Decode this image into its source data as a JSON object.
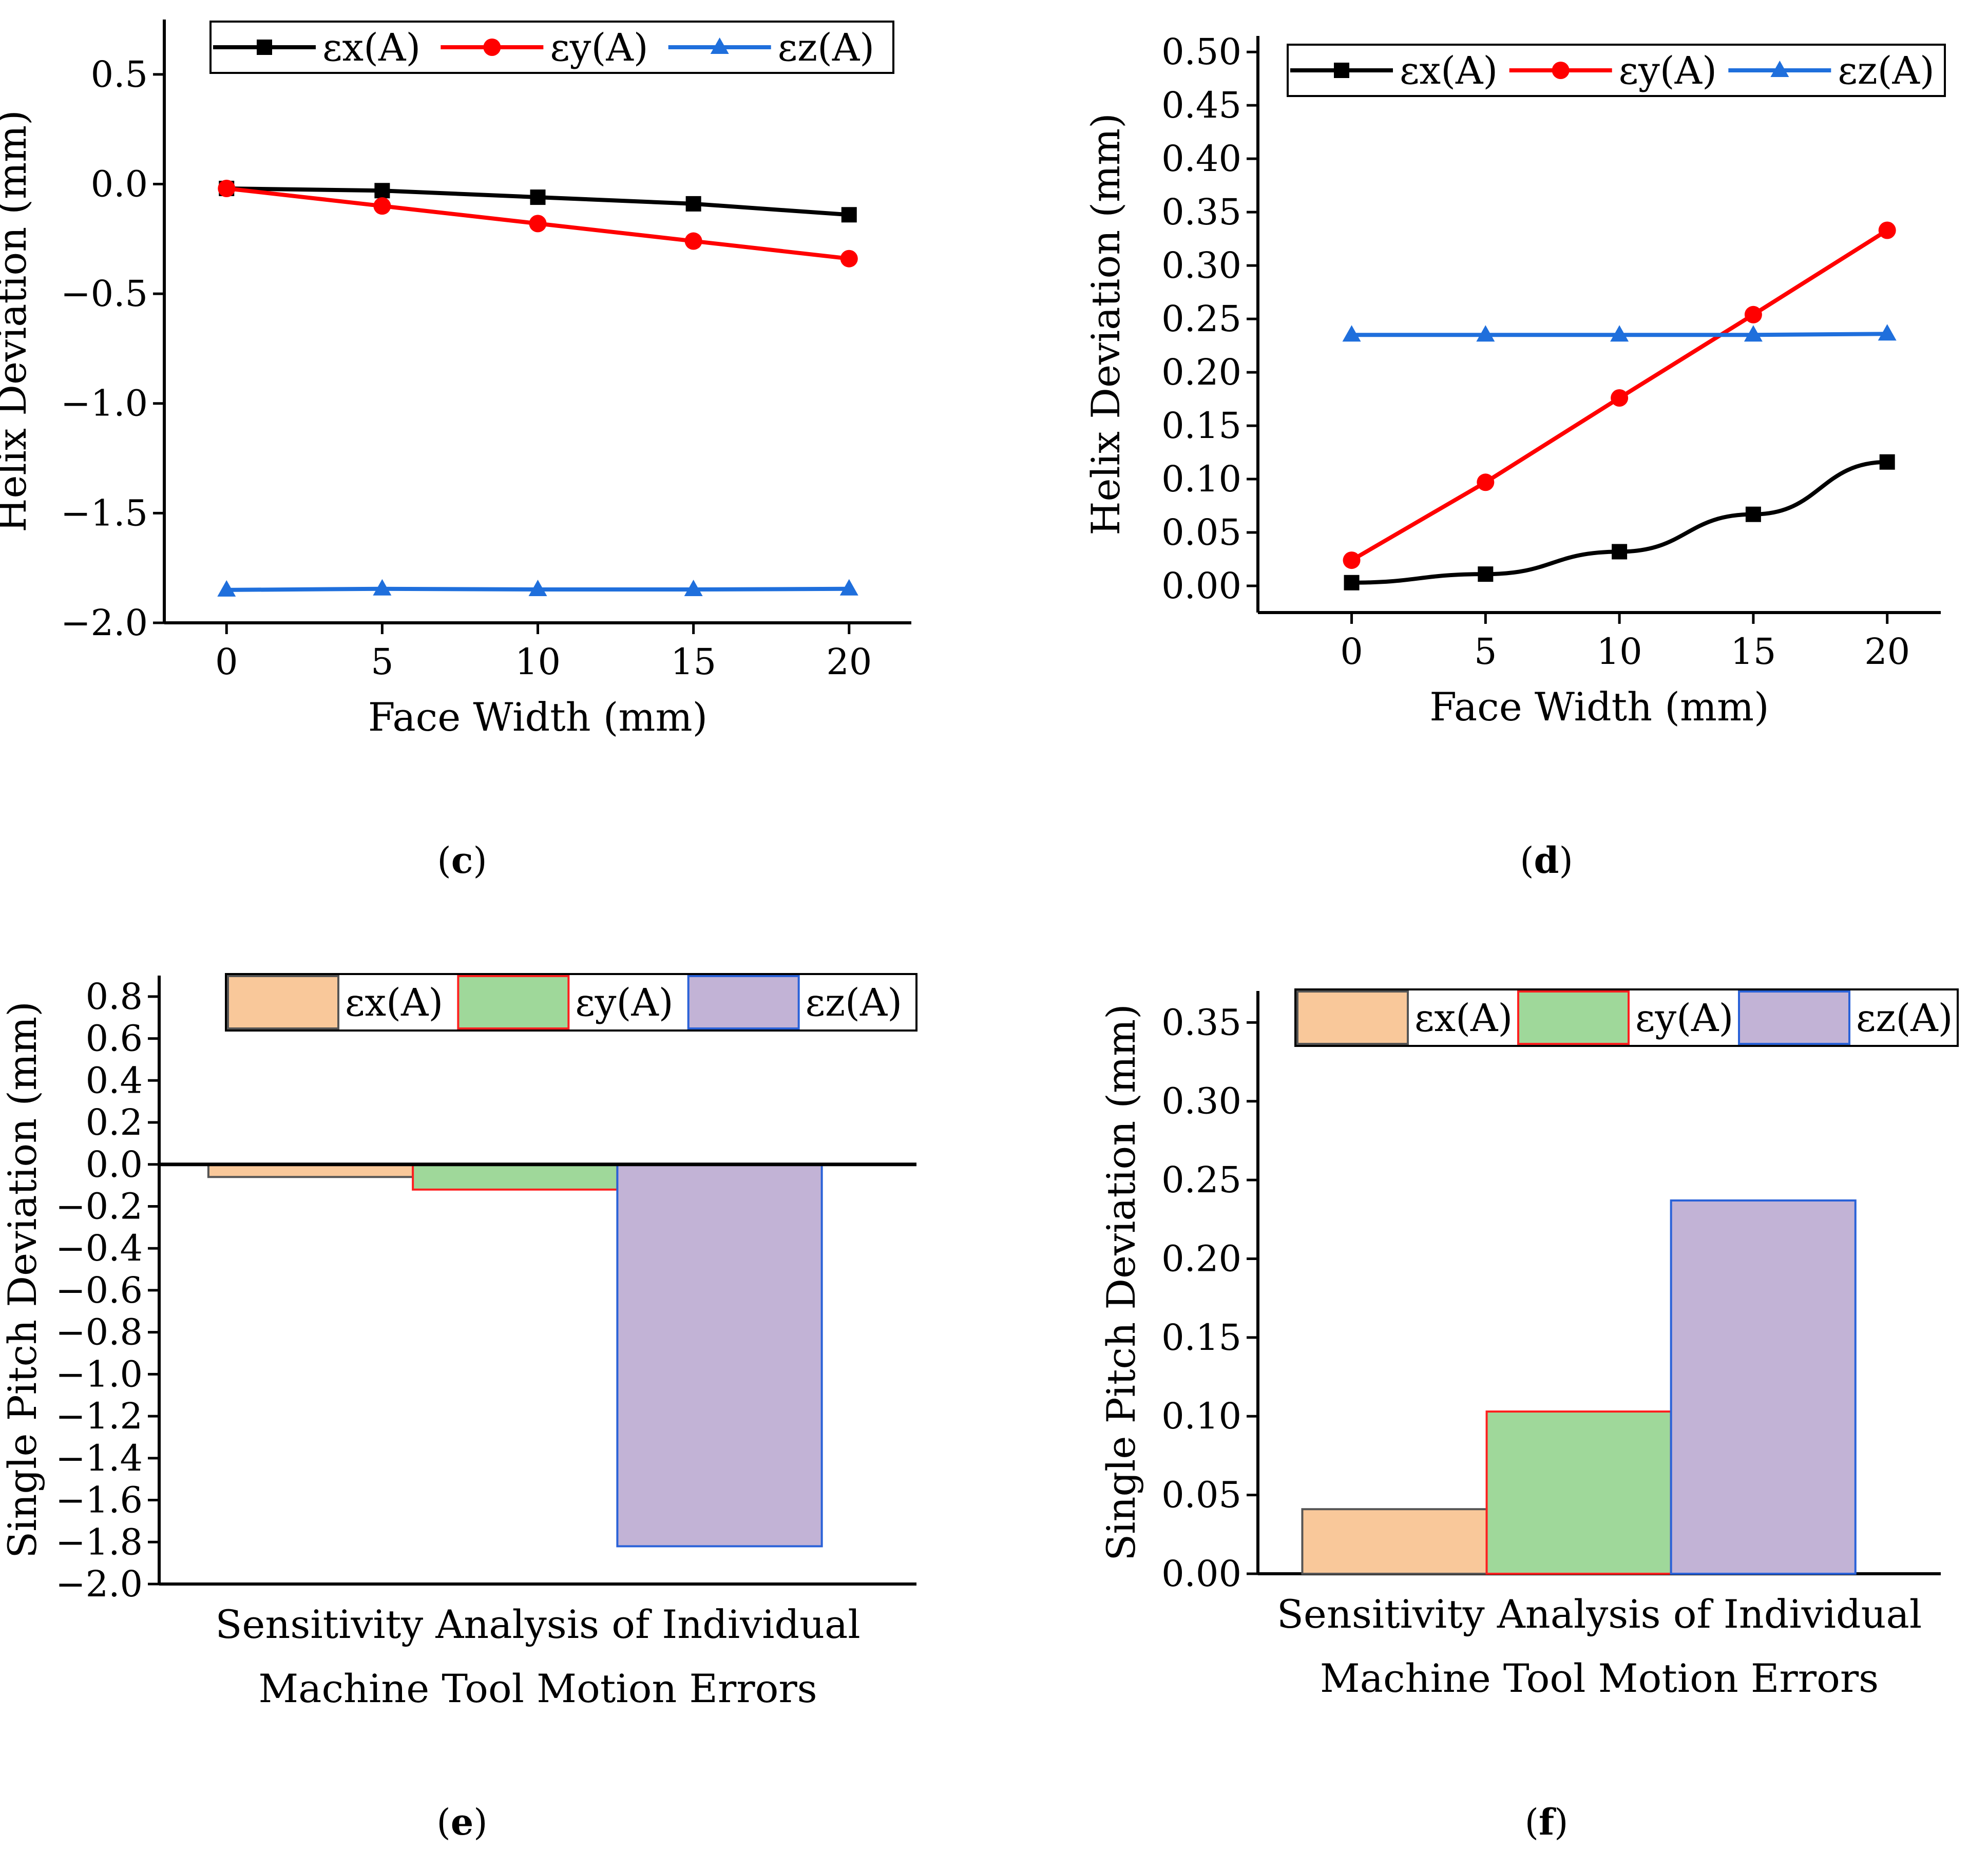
{
  "colors": {
    "line_x": "#000000",
    "line_y": "#ff0000",
    "line_z": "#1f6fdc",
    "bar_x_fill": "#f9c89a",
    "bar_x_stroke": "#555555",
    "bar_y_fill": "#9fd89a",
    "bar_y_stroke": "#ff2020",
    "bar_z_fill": "#c2b3d6",
    "bar_z_stroke": "#2a62d8"
  },
  "chart_data": [
    {
      "id": "c",
      "type": "line",
      "panel_label": "c",
      "xlabel": "Face Width (mm)",
      "ylabel": "Helix Deviation (mm)",
      "xlim": [
        -2,
        22
      ],
      "ylim": [
        -2.0,
        0.75
      ],
      "xticks": [
        0,
        5,
        10,
        15,
        20
      ],
      "yticks": [
        0.5,
        0.0,
        -0.5,
        -1.0,
        -1.5,
        -2.0
      ],
      "ytick_labels": [
        "0.5",
        "0.0",
        "−0.5",
        "−1.0",
        "−1.5",
        "−2.0"
      ],
      "xtick_labels": [
        "0",
        "5",
        "10",
        "15",
        "20"
      ],
      "legend_position": "top",
      "series": [
        {
          "name": "εx(A)",
          "marker": "square",
          "x": [
            0,
            5,
            10,
            15,
            20
          ],
          "y": [
            -0.02,
            -0.03,
            -0.06,
            -0.09,
            -0.14
          ]
        },
        {
          "name": "εy(A)",
          "marker": "circle",
          "x": [
            0,
            5,
            10,
            15,
            20
          ],
          "y": [
            -0.02,
            -0.1,
            -0.18,
            -0.26,
            -0.34
          ]
        },
        {
          "name": "εz(A)",
          "marker": "triangle",
          "x": [
            0,
            5,
            10,
            15,
            20
          ],
          "y": [
            -1.85,
            -1.845,
            -1.848,
            -1.848,
            -1.845
          ]
        }
      ]
    },
    {
      "id": "d",
      "type": "line",
      "panel_label": "d",
      "xlabel": "Face Width (mm)",
      "ylabel": "Helix Deviation (mm)",
      "xlim": [
        -3.5,
        22
      ],
      "ylim": [
        -0.025,
        0.515
      ],
      "xticks": [
        0,
        5,
        10,
        15,
        20
      ],
      "yticks": [
        0.0,
        0.05,
        0.1,
        0.15,
        0.2,
        0.25,
        0.3,
        0.35,
        0.4,
        0.45,
        0.5
      ],
      "ytick_labels": [
        "0.00",
        "0.05",
        "0.10",
        "0.15",
        "0.20",
        "0.25",
        "0.30",
        "0.35",
        "0.40",
        "0.45",
        "0.50"
      ],
      "xtick_labels": [
        "0",
        "5",
        "10",
        "15",
        "20"
      ],
      "legend_position": "top",
      "series": [
        {
          "name": "εx(A)",
          "marker": "square",
          "x": [
            0,
            5,
            10,
            15,
            20
          ],
          "y": [
            0.003,
            0.011,
            0.032,
            0.067,
            0.116
          ]
        },
        {
          "name": "εy(A)",
          "marker": "circle",
          "x": [
            0,
            5,
            10,
            15,
            20
          ],
          "y": [
            0.024,
            0.097,
            0.176,
            0.254,
            0.333
          ]
        },
        {
          "name": "εz(A)",
          "marker": "triangle",
          "x": [
            0,
            5,
            10,
            15,
            20
          ],
          "y": [
            0.235,
            0.235,
            0.235,
            0.235,
            0.236
          ]
        }
      ]
    },
    {
      "id": "e",
      "type": "bar",
      "panel_label": "e",
      "xlabel_lines": [
        "Sensitivity Analysis of Individual",
        "Machine Tool Motion Errors"
      ],
      "ylabel": "Single Pitch Deviation (mm)",
      "ylim": [
        -2.0,
        0.9
      ],
      "yticks": [
        0.8,
        0.6,
        0.4,
        0.2,
        0.0,
        -0.2,
        -0.4,
        -0.6,
        -0.8,
        -1.0,
        -1.2,
        -1.4,
        -1.6,
        -1.8,
        -2.0
      ],
      "ytick_labels": [
        "0.8",
        "0.6",
        "0.4",
        "0.2",
        "0.0",
        "−0.2",
        "−0.4",
        "−0.6",
        "−0.8",
        "−1.0",
        "−1.2",
        "−1.4",
        "−1.6",
        "−1.8",
        "−2.0"
      ],
      "legend_position": "top",
      "categories": [
        "εx(A)",
        "εy(A)",
        "εz(A)"
      ],
      "values": [
        -0.06,
        -0.12,
        -1.82
      ]
    },
    {
      "id": "f",
      "type": "bar",
      "panel_label": "f",
      "xlabel_lines": [
        "Sensitivity Analysis of Individual",
        "Machine Tool Motion Errors"
      ],
      "ylabel": "Single Pitch Deviation (mm)",
      "ylim": [
        0.0,
        0.37
      ],
      "yticks": [
        0.0,
        0.05,
        0.1,
        0.15,
        0.2,
        0.25,
        0.3,
        0.35
      ],
      "ytick_labels": [
        "0.00",
        "0.05",
        "0.10",
        "0.15",
        "0.20",
        "0.25",
        "0.30",
        "0.35"
      ],
      "legend_position": "top",
      "categories": [
        "εx(A)",
        "εy(A)",
        "εz(A)"
      ],
      "values": [
        0.041,
        0.103,
        0.237
      ]
    }
  ]
}
